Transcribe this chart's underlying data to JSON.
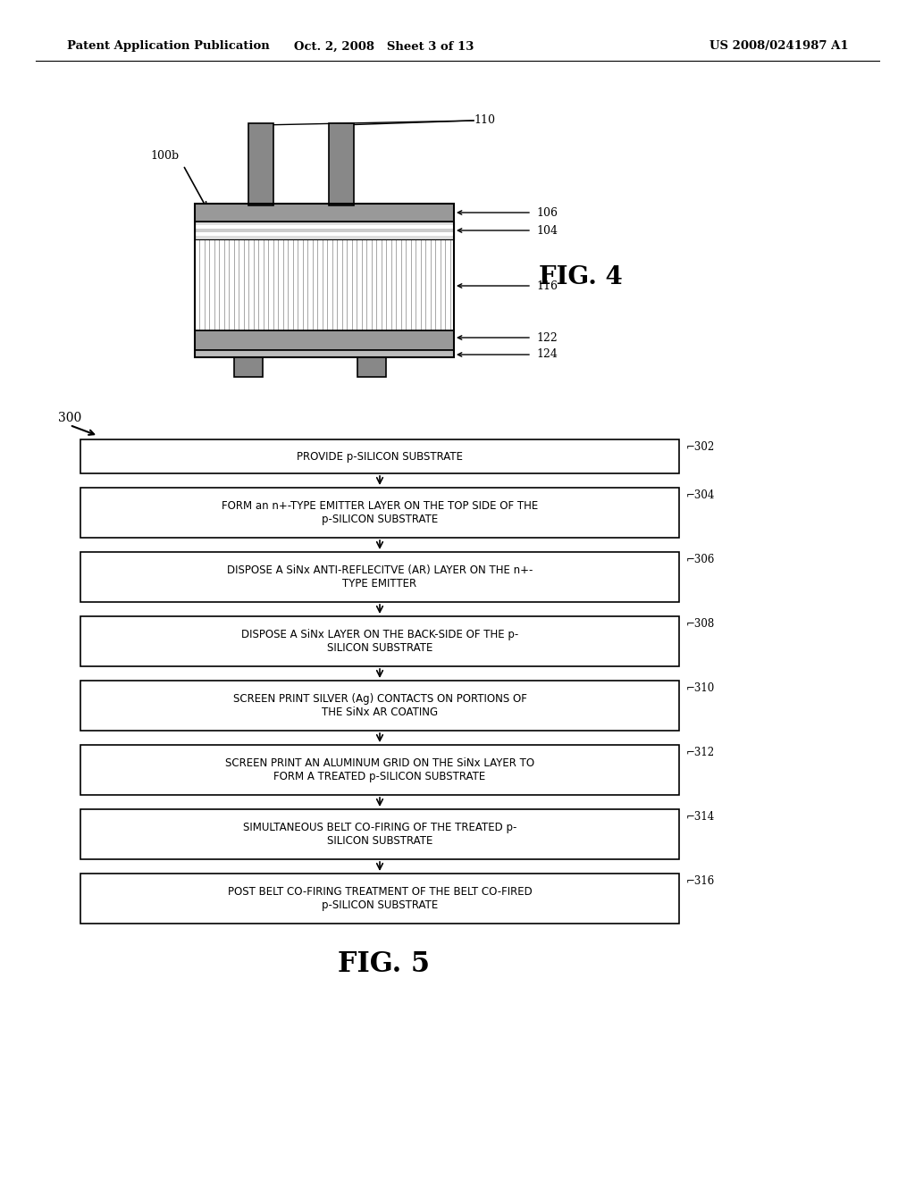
{
  "bg_color": "#ffffff",
  "header_left": "Patent Application Publication",
  "header_center": "Oct. 2, 2008   Sheet 3 of 13",
  "header_right": "US 2008/0241987 A1",
  "fig4_label": "FIG. 4",
  "fig5_label": "FIG. 5",
  "fig4_ref": "100b",
  "flowchart_ref": "300",
  "flowchart_steps": [
    {
      "id": "302",
      "text": "PROVIDE p-SILICON SUBSTRATE",
      "lines": 1
    },
    {
      "id": "304",
      "text": "FORM an n+-TYPE EMITTER LAYER ON THE TOP SIDE OF THE\np-SILICON SUBSTRATE",
      "lines": 2
    },
    {
      "id": "306",
      "text": "DISPOSE A SiNx ANTI-REFLECITVE (AR) LAYER ON THE n+-\nTYPE EMITTER",
      "lines": 2
    },
    {
      "id": "308",
      "text": "DISPOSE A SiNx LAYER ON THE BACK-SIDE OF THE p-\nSILICON SUBSTRATE",
      "lines": 2
    },
    {
      "id": "310",
      "text": "SCREEN PRINT SILVER (Ag) CONTACTS ON PORTIONS OF\nTHE SiNx AR COATING",
      "lines": 2
    },
    {
      "id": "312",
      "text": "SCREEN PRINT AN ALUMINUM GRID ON THE SiNx LAYER TO\nFORM A TREATED p-SILICON SUBSTRATE",
      "lines": 2
    },
    {
      "id": "314",
      "text": "SIMULTANEOUS BELT CO-FIRING OF THE TREATED p-\nSILICON SUBSTRATE",
      "lines": 2
    },
    {
      "id": "316",
      "text": "POST BELT CO-FIRING TREATMENT OF THE BELT CO-FIRED\np-SILICON SUBSTRATE",
      "lines": 2
    }
  ]
}
